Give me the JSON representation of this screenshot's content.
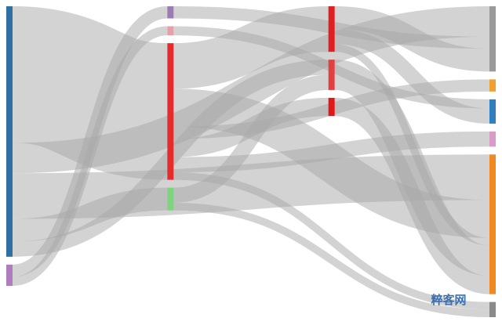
{
  "chart_data": {
    "type": "sankey",
    "nodes": [
      {
        "name": null,
        "color": "#2f6fa3"
      },
      {
        "name": null,
        "color": "#b07cc0"
      },
      {
        "name": null,
        "color": "#9b7bb0"
      },
      {
        "name": null,
        "color": "#e8a0a8"
      },
      {
        "name": null,
        "color": "#e52b2b"
      },
      {
        "name": null,
        "color": "#e02020"
      },
      {
        "name": null,
        "color": "#7ed37e"
      },
      {
        "name": null,
        "color": "#e04040"
      },
      {
        "name": null,
        "color": "#e01818"
      },
      {
        "name": null,
        "color": "#9a9a9a"
      },
      {
        "name": null,
        "color": "#f0a030"
      },
      {
        "name": null,
        "color": "#2f7fc0"
      },
      {
        "name": null,
        "color": "#d99cc8"
      },
      {
        "name": null,
        "color": "#f08a20"
      },
      {
        "name": null,
        "color": "#8a8a8a"
      }
    ],
    "links": [
      {
        "source": 0,
        "target": 4,
        "value": 90
      },
      {
        "source": 0,
        "target": 9,
        "value": 20
      },
      {
        "source": 0,
        "target": 13,
        "value": 30
      },
      {
        "source": 0,
        "target": 6,
        "value": 15
      },
      {
        "source": 0,
        "target": 7,
        "value": 10
      },
      {
        "source": 1,
        "target": 2,
        "value": 8
      },
      {
        "source": 1,
        "target": 3,
        "value": 6
      },
      {
        "source": 2,
        "target": 9,
        "value": 8
      },
      {
        "source": 3,
        "target": 11,
        "value": 6
      },
      {
        "source": 4,
        "target": 5,
        "value": 30
      },
      {
        "source": 4,
        "target": 13,
        "value": 25
      },
      {
        "source": 4,
        "target": 10,
        "value": 8
      },
      {
        "source": 4,
        "target": 8,
        "value": 12
      },
      {
        "source": 4,
        "target": 12,
        "value": 10
      },
      {
        "source": 4,
        "target": 14,
        "value": 5
      },
      {
        "source": 5,
        "target": 9,
        "value": 15
      },
      {
        "source": 5,
        "target": 11,
        "value": 10
      },
      {
        "source": 5,
        "target": 13,
        "value": 5
      },
      {
        "source": 6,
        "target": 7,
        "value": 10
      },
      {
        "source": 6,
        "target": 14,
        "value": 5
      },
      {
        "source": 7,
        "target": 13,
        "value": 20
      },
      {
        "source": 8,
        "target": 13,
        "value": 12
      }
    ],
    "link_color": "#a8a8a8"
  },
  "watermark": "粹客网"
}
